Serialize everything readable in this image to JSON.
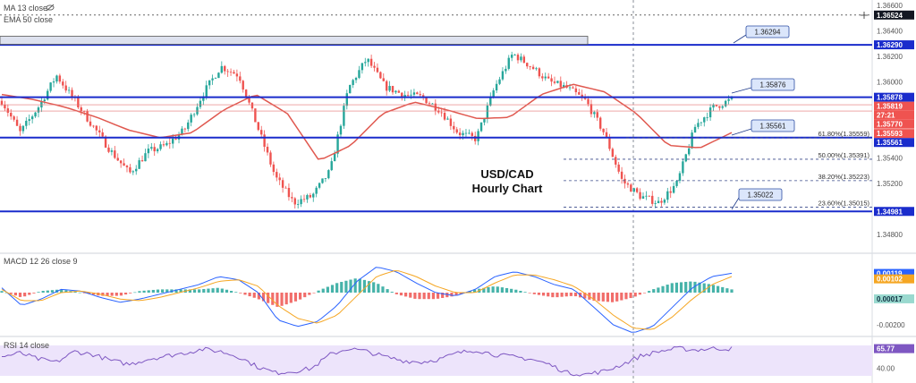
{
  "indicators": {
    "ma_label": "MA 13 close",
    "ema_label": "EMA 50 close",
    "macd_label": "MACD 12 26 close 9",
    "rsi_label": "RSI 14 close"
  },
  "colors": {
    "up": "#26a69a",
    "down": "#ef5350",
    "ema": "#e0584f",
    "level": "#1a2ccc",
    "macd": "#2962ff",
    "signal": "#f5a623",
    "rsi": "#7e57c2",
    "rsi_band": "#ede4fb"
  },
  "annotation": {
    "line1": "USD/CAD",
    "line2": "Hourly Chart"
  },
  "chart_data": [
    {
      "type": "candlestick",
      "title": "USD/CAD Hourly Chart",
      "ylim": [
        1.3468,
        1.3662
      ],
      "y_ticks": [
        "1.36600",
        "1.36400",
        "1.36200",
        "1.36000",
        "1.35400",
        "1.35200",
        "1.34800"
      ],
      "ema50_approx": [
        1.359,
        1.3586,
        1.358,
        1.3572,
        1.3562,
        1.3556,
        1.356,
        1.3578,
        1.359,
        1.3575,
        1.3538,
        1.355,
        1.3575,
        1.3584,
        1.3578,
        1.3571,
        1.3572,
        1.359,
        1.3598,
        1.3592,
        1.3575,
        1.355,
        1.3548,
        1.356
      ],
      "close_path": [
        1.3585,
        1.356,
        1.358,
        1.3605,
        1.3585,
        1.3565,
        1.3545,
        1.3528,
        1.3545,
        1.355,
        1.3562,
        1.359,
        1.3612,
        1.3605,
        1.3565,
        1.3525,
        1.3505,
        1.351,
        1.353,
        1.3595,
        1.3618,
        1.3596,
        1.359,
        1.3588,
        1.3578,
        1.356,
        1.3555,
        1.3595,
        1.3622,
        1.3612,
        1.36,
        1.3595,
        1.3585,
        1.356,
        1.3522,
        1.351,
        1.3505,
        1.352,
        1.3565,
        1.358,
        1.3586
      ],
      "horizontal_levels": [
        "1.36290",
        "1.35878",
        "1.35561",
        "1.34981"
      ],
      "box_level": "1.36294",
      "callouts": [
        "1.36294",
        "1.35876",
        "1.35561",
        "1.35022"
      ],
      "fib_levels": [
        {
          "label": "61.80%(1.35559)",
          "value": 1.35559
        },
        {
          "label": "50.00%(1.35391)",
          "value": 1.35391
        },
        {
          "label": "38.20%(1.35223)",
          "value": 1.35223
        },
        {
          "label": "23.60%(1.35015)",
          "value": 1.35015
        }
      ],
      "price_tags": [
        {
          "text": "1.36524",
          "value": 1.36524,
          "style": "dark"
        },
        {
          "text": "1.36290",
          "value": 1.3629,
          "style": "blue"
        },
        {
          "text": "1.35878",
          "value": 1.35878,
          "style": "blue"
        },
        {
          "text": "1.35819",
          "value": 1.35819,
          "style": "red"
        },
        {
          "text": "27:21",
          "value": 1.35797,
          "style": "red"
        },
        {
          "text": "1.35770",
          "value": 1.3577,
          "style": "red"
        },
        {
          "text": "1.35593",
          "value": 1.35593,
          "style": "red"
        },
        {
          "text": "1.35561",
          "value": 1.35561,
          "style": "blue"
        },
        {
          "text": "1.34981",
          "value": 1.34981,
          "style": "blue"
        }
      ]
    },
    {
      "type": "bar",
      "title": "MACD 12 26 close 9",
      "ylim": [
        -0.0027,
        0.002
      ],
      "y_ticks": [
        "-0.00200"
      ],
      "tags": [
        "0.00119",
        "0.00102",
        "0.00017"
      ],
      "macd_path": [
        0.0003,
        -0.0008,
        -0.0004,
        0.0002,
        0.0001,
        -0.0003,
        -0.0006,
        -0.0004,
        -0.0001,
        0.0002,
        0.0005,
        0.001,
        0.0008,
        0.0,
        -0.0017,
        -0.0021,
        -0.0018,
        -0.0008,
        0.0007,
        0.0016,
        0.0013,
        0.0006,
        0.0,
        -0.0002,
        0.0002,
        0.001,
        0.0013,
        0.001,
        0.0005,
        0.0002,
        -0.0009,
        -0.002,
        -0.0025,
        -0.0021,
        -0.0009,
        0.0003,
        0.001,
        0.0012
      ],
      "signal_path": [
        0.0002,
        -0.0005,
        -0.0005,
        0.0,
        0.0001,
        -0.0001,
        -0.0004,
        -0.0005,
        -0.0003,
        0.0,
        0.0003,
        0.0007,
        0.0008,
        0.0004,
        -0.0008,
        -0.0016,
        -0.0019,
        -0.0014,
        -0.0002,
        0.001,
        0.0014,
        0.001,
        0.0004,
        0.0,
        0.0,
        0.0006,
        0.0011,
        0.0011,
        0.0008,
        0.0004,
        -0.0004,
        -0.0014,
        -0.0022,
        -0.0023,
        -0.0015,
        -0.0004,
        0.0005,
        0.001
      ]
    },
    {
      "type": "line",
      "title": "RSI 14 close",
      "ylim": [
        30,
        75
      ],
      "y_ticks": [
        "40.00"
      ],
      "band": [
        30,
        70
      ],
      "last_value": "65.77",
      "rsi_path": [
        55,
        60,
        52,
        48,
        62,
        58,
        50,
        45,
        52,
        56,
        60,
        65,
        62,
        55,
        42,
        34,
        36,
        40,
        58,
        66,
        62,
        55,
        50,
        48,
        52,
        60,
        64,
        58,
        55,
        52,
        45,
        34,
        32,
        36,
        45,
        56,
        62,
        66,
        64,
        66,
        65.77
      ]
    }
  ]
}
